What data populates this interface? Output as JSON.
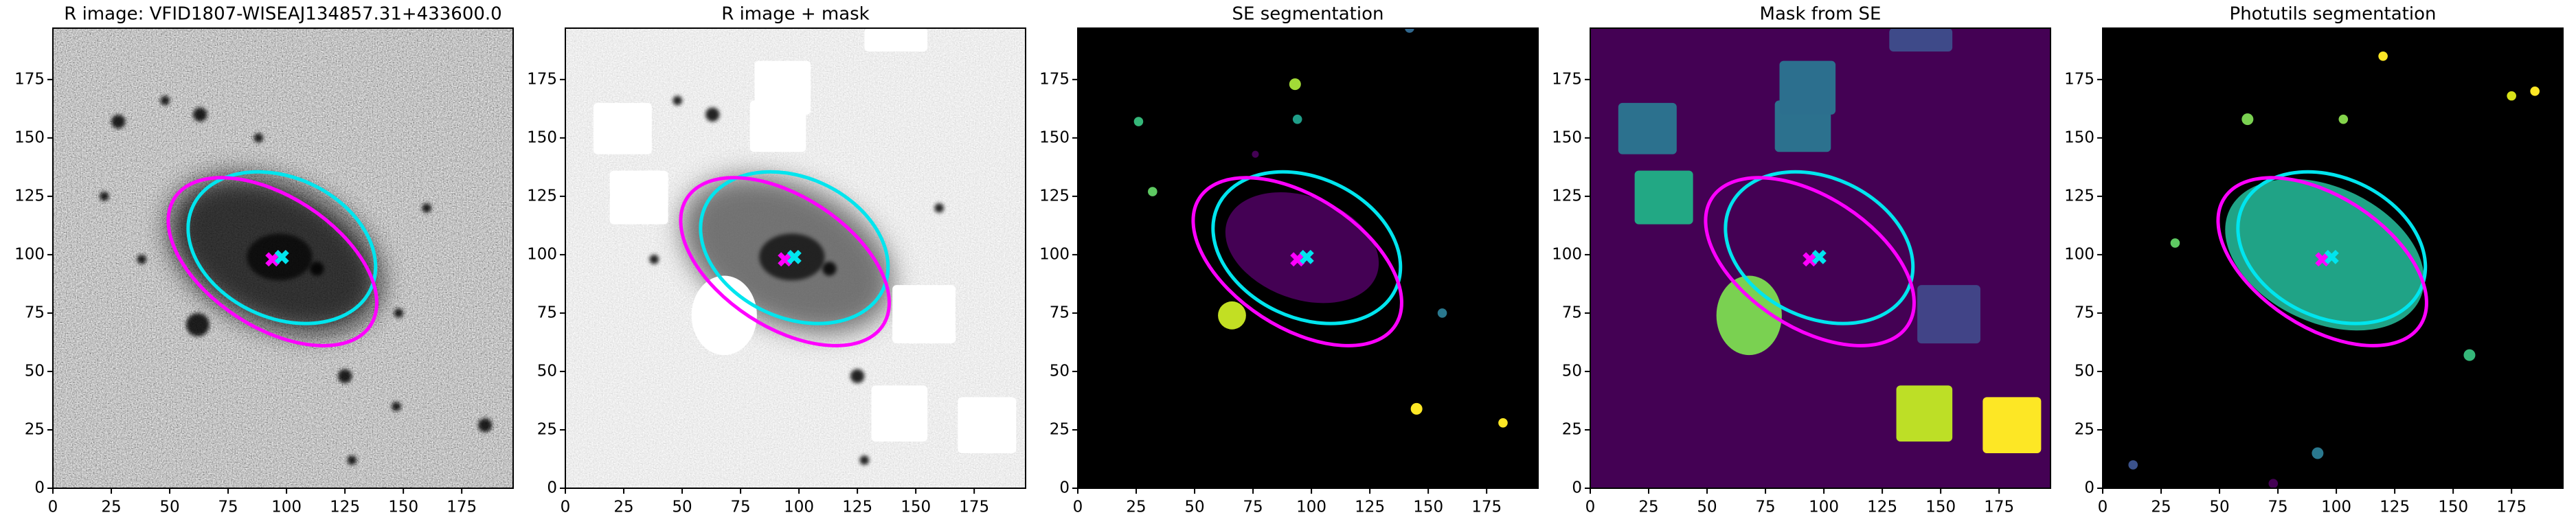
{
  "chart_data": [
    {
      "type": "image",
      "title": "R image: VFID1807-WISEAJ134857.31+433600.0",
      "xlim": [
        0,
        197
      ],
      "ylim": [
        0,
        197
      ],
      "xticks": [
        0,
        25,
        50,
        75,
        100,
        125,
        150,
        175
      ],
      "yticks": [
        0,
        25,
        50,
        75,
        100,
        125,
        150,
        175
      ],
      "ellipses": [
        {
          "cx": 98,
          "cy": 103,
          "rx": 42,
          "ry": 30,
          "angle": -25,
          "color": "#00e5ee"
        },
        {
          "cx": 94,
          "cy": 97,
          "rx": 50,
          "ry": 28,
          "angle": -33,
          "color": "#ff00ff"
        }
      ],
      "markers": [
        {
          "x": 94,
          "y": 98,
          "color": "#ff00ff"
        },
        {
          "x": 98,
          "y": 99,
          "color": "#00e5ee"
        }
      ]
    },
    {
      "type": "image",
      "title": "R image + mask",
      "xlim": [
        0,
        197
      ],
      "ylim": [
        0,
        197
      ],
      "xticks": [
        0,
        25,
        50,
        75,
        100,
        125,
        150,
        175
      ],
      "yticks": [
        0,
        25,
        50,
        75,
        100,
        125,
        150,
        175
      ],
      "ellipses": [
        {
          "cx": 98,
          "cy": 103,
          "rx": 42,
          "ry": 30,
          "angle": -25,
          "color": "#00e5ee"
        },
        {
          "cx": 94,
          "cy": 97,
          "rx": 50,
          "ry": 28,
          "angle": -33,
          "color": "#ff00ff"
        }
      ],
      "markers": [
        {
          "x": 94,
          "y": 98,
          "color": "#ff00ff"
        },
        {
          "x": 98,
          "y": 99,
          "color": "#00e5ee"
        }
      ]
    },
    {
      "type": "image",
      "title": "SE segmentation",
      "xlim": [
        0,
        197
      ],
      "ylim": [
        0,
        197
      ],
      "xticks": [
        0,
        25,
        50,
        75,
        100,
        125,
        150,
        175
      ],
      "yticks": [
        0,
        25,
        50,
        75,
        100,
        125,
        150,
        175
      ],
      "ellipses": [
        {
          "cx": 98,
          "cy": 103,
          "rx": 42,
          "ry": 30,
          "angle": -25,
          "color": "#00e5ee"
        },
        {
          "cx": 94,
          "cy": 97,
          "rx": 50,
          "ry": 28,
          "angle": -33,
          "color": "#ff00ff"
        }
      ],
      "markers": [
        {
          "x": 94,
          "y": 98,
          "color": "#ff00ff"
        },
        {
          "x": 98,
          "y": 99,
          "color": "#00e5ee"
        }
      ]
    },
    {
      "type": "image",
      "title": "Mask from SE",
      "xlim": [
        0,
        197
      ],
      "ylim": [
        0,
        197
      ],
      "xticks": [
        0,
        25,
        50,
        75,
        100,
        125,
        150,
        175
      ],
      "yticks": [
        0,
        25,
        50,
        75,
        100,
        125,
        150,
        175
      ],
      "ellipses": [
        {
          "cx": 98,
          "cy": 103,
          "rx": 42,
          "ry": 30,
          "angle": -25,
          "color": "#00e5ee"
        },
        {
          "cx": 94,
          "cy": 97,
          "rx": 50,
          "ry": 28,
          "angle": -33,
          "color": "#ff00ff"
        }
      ],
      "markers": [
        {
          "x": 94,
          "y": 98,
          "color": "#ff00ff"
        },
        {
          "x": 98,
          "y": 99,
          "color": "#00e5ee"
        }
      ]
    },
    {
      "type": "image",
      "title": "Photutils segmentation",
      "xlim": [
        0,
        197
      ],
      "ylim": [
        0,
        197
      ],
      "xticks": [
        0,
        25,
        50,
        75,
        100,
        125,
        150,
        175
      ],
      "yticks": [
        0,
        25,
        50,
        75,
        100,
        125,
        150,
        175
      ],
      "ellipses": [
        {
          "cx": 98,
          "cy": 103,
          "rx": 42,
          "ry": 30,
          "angle": -25,
          "color": "#00e5ee"
        },
        {
          "cx": 94,
          "cy": 97,
          "rx": 50,
          "ry": 28,
          "angle": -33,
          "color": "#ff00ff"
        }
      ],
      "markers": [
        {
          "x": 94,
          "y": 98,
          "color": "#ff00ff"
        },
        {
          "x": 98,
          "y": 99,
          "color": "#00e5ee"
        }
      ]
    }
  ]
}
